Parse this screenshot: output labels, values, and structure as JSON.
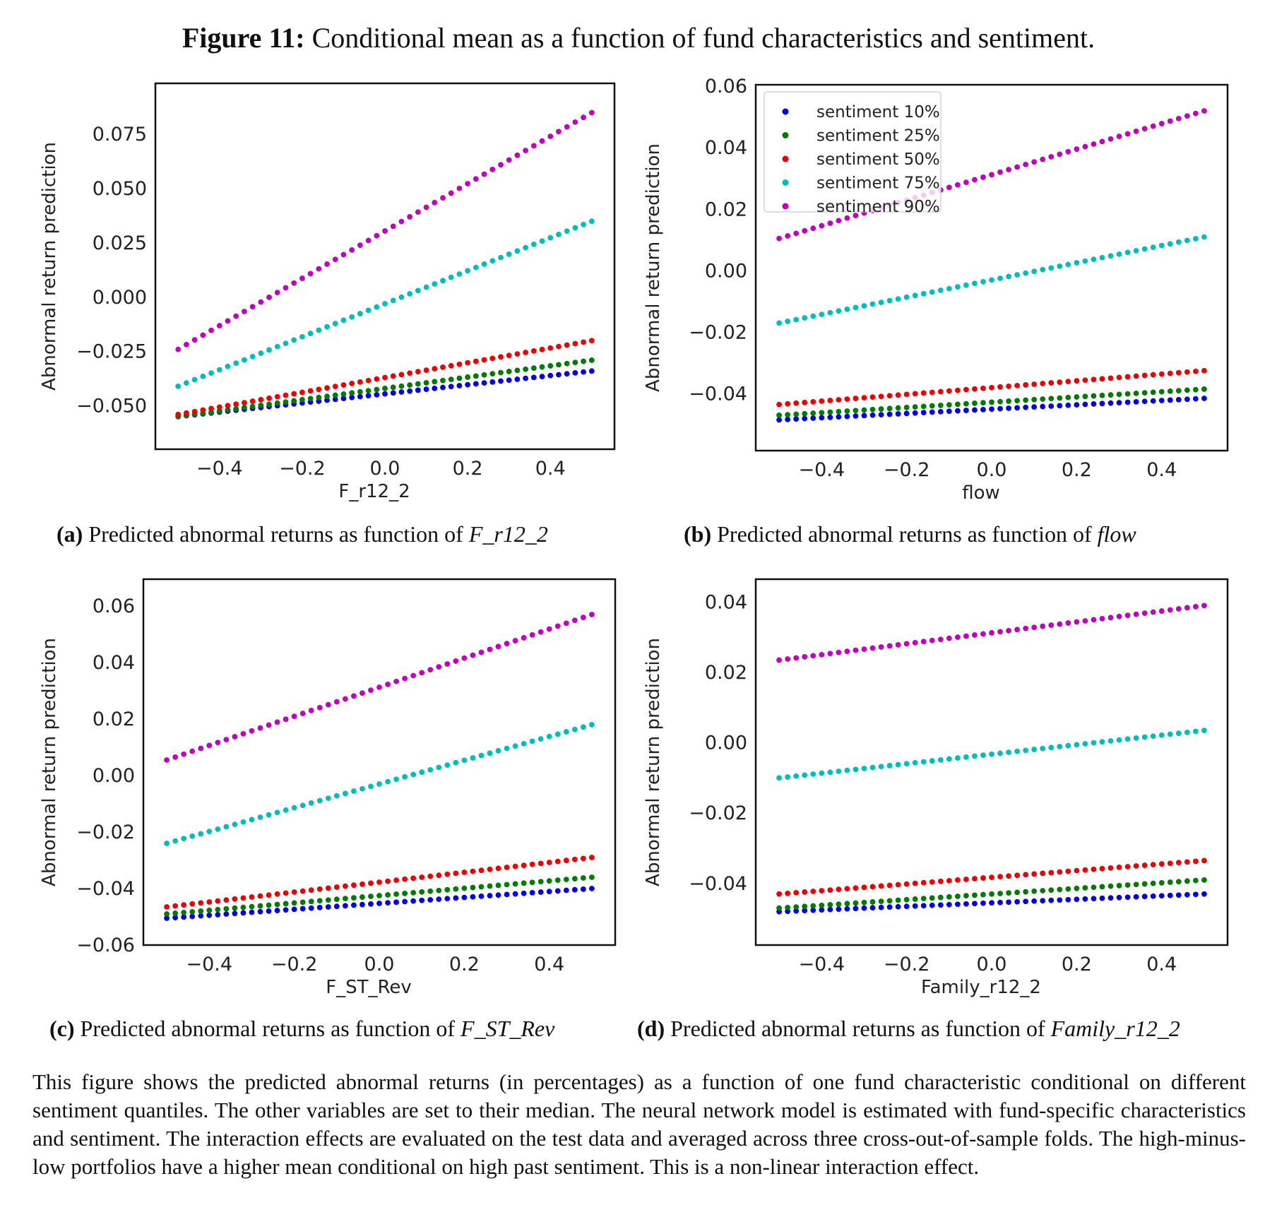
{
  "figure": {
    "label": "Figure 11:",
    "title": "Conditional mean as a function of fund characteristics and sentiment."
  },
  "legend": {
    "entries": [
      "sentiment 10%",
      "sentiment 25%",
      "sentiment 50%",
      "sentiment 75%",
      "sentiment 90%"
    ]
  },
  "colors": {
    "sentiment 10%": "#0000ee",
    "sentiment 25%": "#007a00",
    "sentiment 50%": "#ee0000",
    "sentiment 75%": "#00bdbd",
    "sentiment 90%": "#bf00bf"
  },
  "captions": {
    "a": {
      "letter": "(a)",
      "text": "Predicted abnormal returns as function of",
      "var": "F_r12_2"
    },
    "b": {
      "letter": "(b)",
      "text": "Predicted abnormal returns as function of",
      "var": "flow"
    },
    "c": {
      "letter": "(c)",
      "text": "Predicted abnormal returns as function of",
      "var": "F_ST_Rev"
    },
    "d": {
      "letter": "(d)",
      "text": "Predicted abnormal returns as function of",
      "var": "Family_r12_2"
    }
  },
  "notes": "This figure shows the predicted abnormal returns (in percentages) as a function of one fund characteristic conditional on different sentiment quantiles. The other variables are set to their median. The neural network model is estimated with fund-specific characteristics and sentiment. The interaction effects are evaluated on the test data and averaged across three cross-out-of-sample folds. The high-minus-low portfolios have a higher mean conditional on high past sentiment. This is a non-linear interaction effect.",
  "chart_data": [
    {
      "id": "a",
      "type": "scatter",
      "xlabel": "F_r12_2",
      "ylabel": "Abnormal return prediction",
      "xlim": [
        -0.555,
        0.555
      ],
      "ylim": [
        -0.07,
        0.0985
      ],
      "xticks": [
        -0.4,
        -0.2,
        0.0,
        0.2,
        0.4
      ],
      "xtick_labels": [
        "−0.4",
        "−0.2",
        "0.0",
        "0.2",
        "0.4"
      ],
      "yticks": [
        -0.05,
        -0.025,
        0.0,
        0.025,
        0.05,
        0.075
      ],
      "ytick_labels": [
        "−0.050",
        "−0.025",
        "0.000",
        "0.025",
        "0.050",
        "0.075"
      ],
      "x_range": [
        -0.5,
        0.5
      ],
      "n_points": 51,
      "series": [
        {
          "name": "sentiment 10%",
          "y0": -0.055,
          "y1": -0.034
        },
        {
          "name": "sentiment 25%",
          "y0": -0.055,
          "y1": -0.029
        },
        {
          "name": "sentiment 50%",
          "y0": -0.054,
          "y1": -0.02
        },
        {
          "name": "sentiment 75%",
          "y0": -0.041,
          "y1": 0.035
        },
        {
          "name": "sentiment 90%",
          "y0": -0.024,
          "y1": 0.085
        }
      ]
    },
    {
      "id": "b",
      "type": "scatter",
      "xlabel": "flow",
      "ylabel": "Abnormal return prediction",
      "xlim": [
        -0.555,
        0.555
      ],
      "ylim": [
        -0.0585,
        0.0605
      ],
      "xticks": [
        -0.4,
        -0.2,
        0.0,
        0.2,
        0.4
      ],
      "xtick_labels": [
        "−0.4",
        "−0.2",
        "0.0",
        "0.2",
        "0.4"
      ],
      "yticks": [
        -0.04,
        -0.02,
        0.0,
        0.02,
        0.04,
        0.06
      ],
      "ytick_labels": [
        "−0.04",
        "−0.02",
        "0.00",
        "0.02",
        "0.04",
        "0.06"
      ],
      "x_range": [
        -0.5,
        0.5
      ],
      "n_points": 51,
      "legend": "top-left",
      "series": [
        {
          "name": "sentiment 10%",
          "y0": -0.0485,
          "y1": -0.0415
        },
        {
          "name": "sentiment 25%",
          "y0": -0.047,
          "y1": -0.0385
        },
        {
          "name": "sentiment 50%",
          "y0": -0.0435,
          "y1": -0.0325
        },
        {
          "name": "sentiment 75%",
          "y0": -0.017,
          "y1": 0.011
        },
        {
          "name": "sentiment 90%",
          "y0": 0.0105,
          "y1": 0.052
        }
      ]
    },
    {
      "id": "c",
      "type": "scatter",
      "xlabel": "F_ST_Rev",
      "ylabel": "Abnormal return prediction",
      "xlim": [
        -0.555,
        0.555
      ],
      "ylim": [
        -0.06,
        0.0695
      ],
      "xticks": [
        -0.4,
        -0.2,
        0.0,
        0.2,
        0.4
      ],
      "xtick_labels": [
        "−0.4",
        "−0.2",
        "0.0",
        "0.2",
        "0.4"
      ],
      "yticks": [
        -0.06,
        -0.04,
        -0.02,
        0.0,
        0.02,
        0.04,
        0.06
      ],
      "ytick_labels": [
        "−0.06",
        "−0.04",
        "−0.02",
        "0.00",
        "0.02",
        "0.04",
        "0.06"
      ],
      "x_range": [
        -0.5,
        0.5
      ],
      "n_points": 51,
      "series": [
        {
          "name": "sentiment 10%",
          "y0": -0.0505,
          "y1": -0.04
        },
        {
          "name": "sentiment 25%",
          "y0": -0.049,
          "y1": -0.036
        },
        {
          "name": "sentiment 50%",
          "y0": -0.0465,
          "y1": -0.029
        },
        {
          "name": "sentiment 75%",
          "y0": -0.024,
          "y1": 0.018
        },
        {
          "name": "sentiment 90%",
          "y0": 0.0055,
          "y1": 0.057
        }
      ]
    },
    {
      "id": "d",
      "type": "scatter",
      "xlabel": "Family_r12_2",
      "ylabel": "Abnormal return prediction",
      "xlim": [
        -0.555,
        0.555
      ],
      "ylim": [
        -0.0575,
        0.0465
      ],
      "xticks": [
        -0.4,
        -0.2,
        0.0,
        0.2,
        0.4
      ],
      "xtick_labels": [
        "−0.4",
        "−0.2",
        "0.0",
        "0.2",
        "0.4"
      ],
      "yticks": [
        -0.04,
        -0.02,
        0.0,
        0.02,
        0.04
      ],
      "ytick_labels": [
        "−0.04",
        "−0.02",
        "0.00",
        "0.02",
        "0.04"
      ],
      "x_range": [
        -0.5,
        0.5
      ],
      "n_points": 51,
      "series": [
        {
          "name": "sentiment 10%",
          "y0": -0.048,
          "y1": -0.043
        },
        {
          "name": "sentiment 25%",
          "y0": -0.047,
          "y1": -0.039
        },
        {
          "name": "sentiment 50%",
          "y0": -0.043,
          "y1": -0.0335
        },
        {
          "name": "sentiment 75%",
          "y0": -0.01,
          "y1": 0.0035
        },
        {
          "name": "sentiment 90%",
          "y0": 0.0235,
          "y1": 0.039
        }
      ]
    }
  ]
}
